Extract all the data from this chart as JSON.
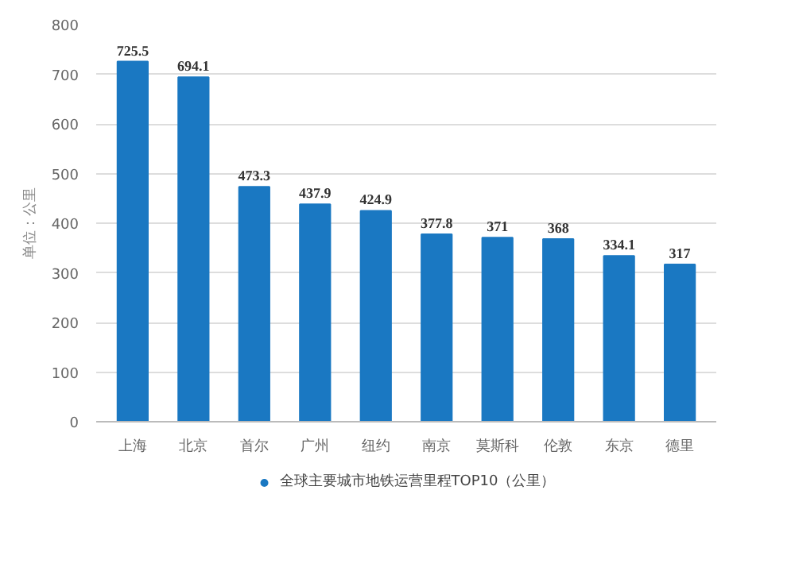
{
  "chart_data": {
    "type": "bar",
    "ylabel": "单位：公里",
    "categories": [
      "上海",
      "北京",
      "首尔",
      "广州",
      "纽约",
      "南京",
      "莫斯科",
      "伦敦",
      "东京",
      "德里"
    ],
    "series": [
      {
        "name": "全球主要城市地铁运营里程TOP10（公里）",
        "color": "#1a78c2",
        "values": [
          725.5,
          694.1,
          473.3,
          437.9,
          424.9,
          377.8,
          371,
          368,
          334.1,
          317
        ]
      }
    ],
    "ylim": [
      0,
      800
    ],
    "yticks": [
      0,
      100,
      200,
      300,
      400,
      500,
      600,
      700,
      800
    ],
    "grid": "y",
    "legend": "bottom",
    "data_labels": true
  }
}
